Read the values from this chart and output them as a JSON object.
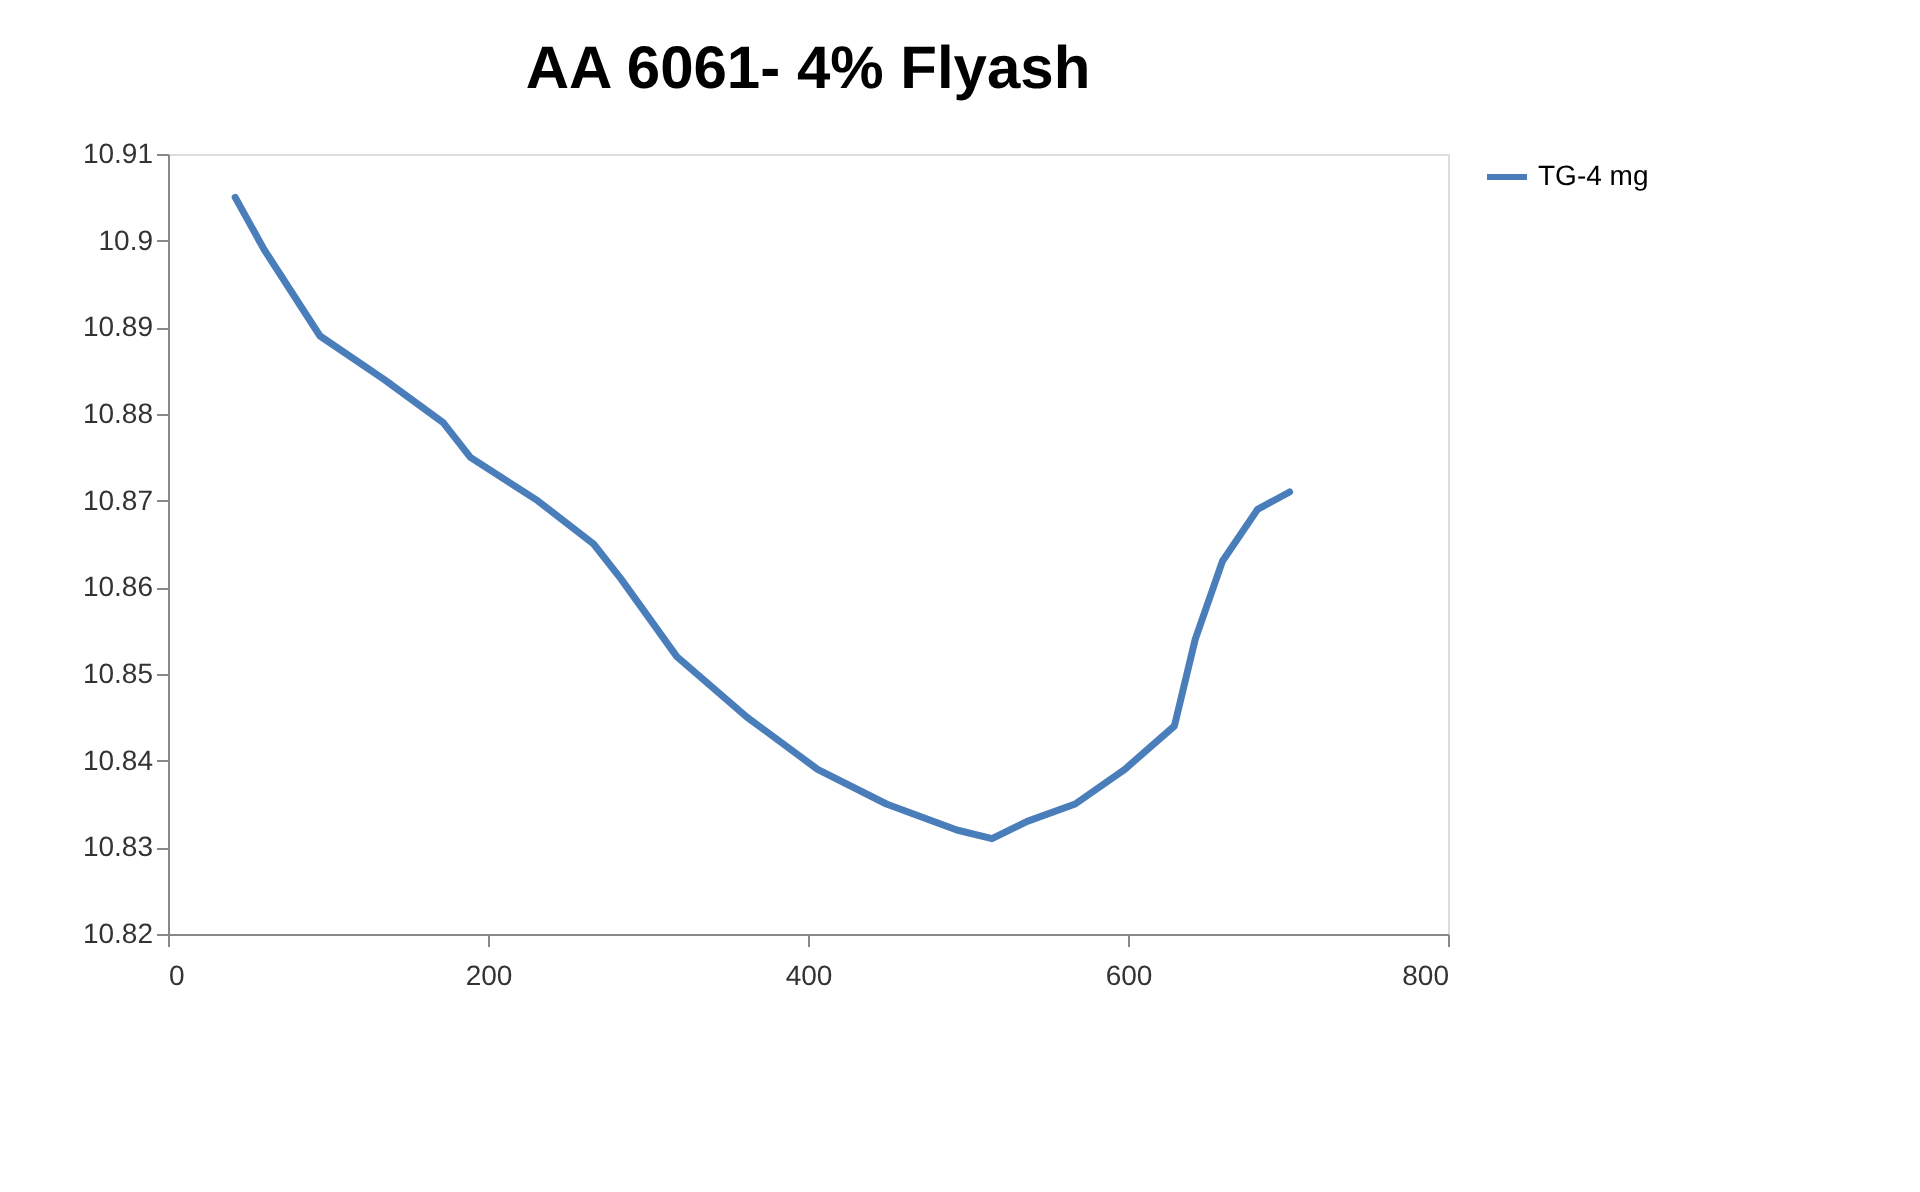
{
  "chart_data": {
    "type": "line",
    "title": "AA 6061- 4% Flyash",
    "series": [
      {
        "name": "TG-4 mg",
        "color": "#4a7ebb",
        "x": [
          42,
          60,
          95,
          135,
          172,
          189,
          231,
          266,
          283,
          318,
          362,
          406,
          449,
          493,
          515,
          537,
          567,
          598,
          629,
          642,
          659,
          681,
          701
        ],
        "values": [
          10.905,
          10.899,
          10.889,
          10.884,
          10.879,
          10.875,
          10.87,
          10.865,
          10.861,
          10.852,
          10.845,
          10.839,
          10.835,
          10.832,
          10.831,
          10.833,
          10.835,
          10.839,
          10.844,
          10.854,
          10.863,
          10.869,
          10.871
        ]
      }
    ],
    "xlim": [
      0,
      800
    ],
    "xticks": [
      0,
      200,
      400,
      600,
      800
    ],
    "ylim": [
      10.82,
      10.91
    ],
    "yticks": [
      10.82,
      10.83,
      10.84,
      10.85,
      10.86,
      10.87,
      10.88,
      10.89,
      10.9,
      10.91
    ],
    "grid": false,
    "legend": "right",
    "marker": "none",
    "line_style": "solid"
  }
}
